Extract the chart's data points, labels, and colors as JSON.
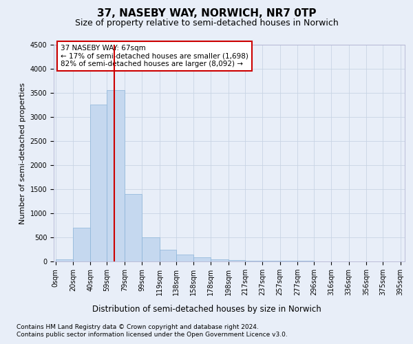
{
  "title": "37, NASEBY WAY, NORWICH, NR7 0TP",
  "subtitle": "Size of property relative to semi-detached houses in Norwich",
  "xlabel": "Distribution of semi-detached houses by size in Norwich",
  "ylabel": "Number of semi-detached properties",
  "annotation_title": "37 NASEBY WAY: 67sqm",
  "annotation_line1": "← 17% of semi-detached houses are smaller (1,698)",
  "annotation_line2": "82% of semi-detached houses are larger (8,092) →",
  "property_size": 67,
  "footer_line1": "Contains HM Land Registry data © Crown copyright and database right 2024.",
  "footer_line2": "Contains public sector information licensed under the Open Government Licence v3.0.",
  "bar_edges": [
    0,
    20,
    40,
    59,
    79,
    99,
    119,
    138,
    158,
    178,
    198,
    217,
    237,
    257,
    277,
    296,
    316,
    336,
    356,
    375,
    395
  ],
  "bar_heights": [
    50,
    700,
    3250,
    3550,
    1400,
    500,
    250,
    150,
    80,
    50,
    30,
    20,
    15,
    10,
    8,
    5,
    4,
    3,
    2,
    1
  ],
  "bar_color": "#c5d8ef",
  "bar_edge_color": "#8ab4d8",
  "vline_color": "#cc0000",
  "vline_x": 67,
  "annotation_box_color": "#ffffff",
  "annotation_box_edge": "#cc0000",
  "grid_color": "#c8d4e4",
  "bg_color": "#e8eef8",
  "ylim": [
    0,
    4500
  ],
  "yticks": [
    0,
    500,
    1000,
    1500,
    2000,
    2500,
    3000,
    3500,
    4000,
    4500
  ],
  "title_fontsize": 11,
  "subtitle_fontsize": 9,
  "xlabel_fontsize": 8.5,
  "ylabel_fontsize": 8,
  "tick_fontsize": 7,
  "annotation_fontsize": 7.5,
  "footer_fontsize": 6.5
}
